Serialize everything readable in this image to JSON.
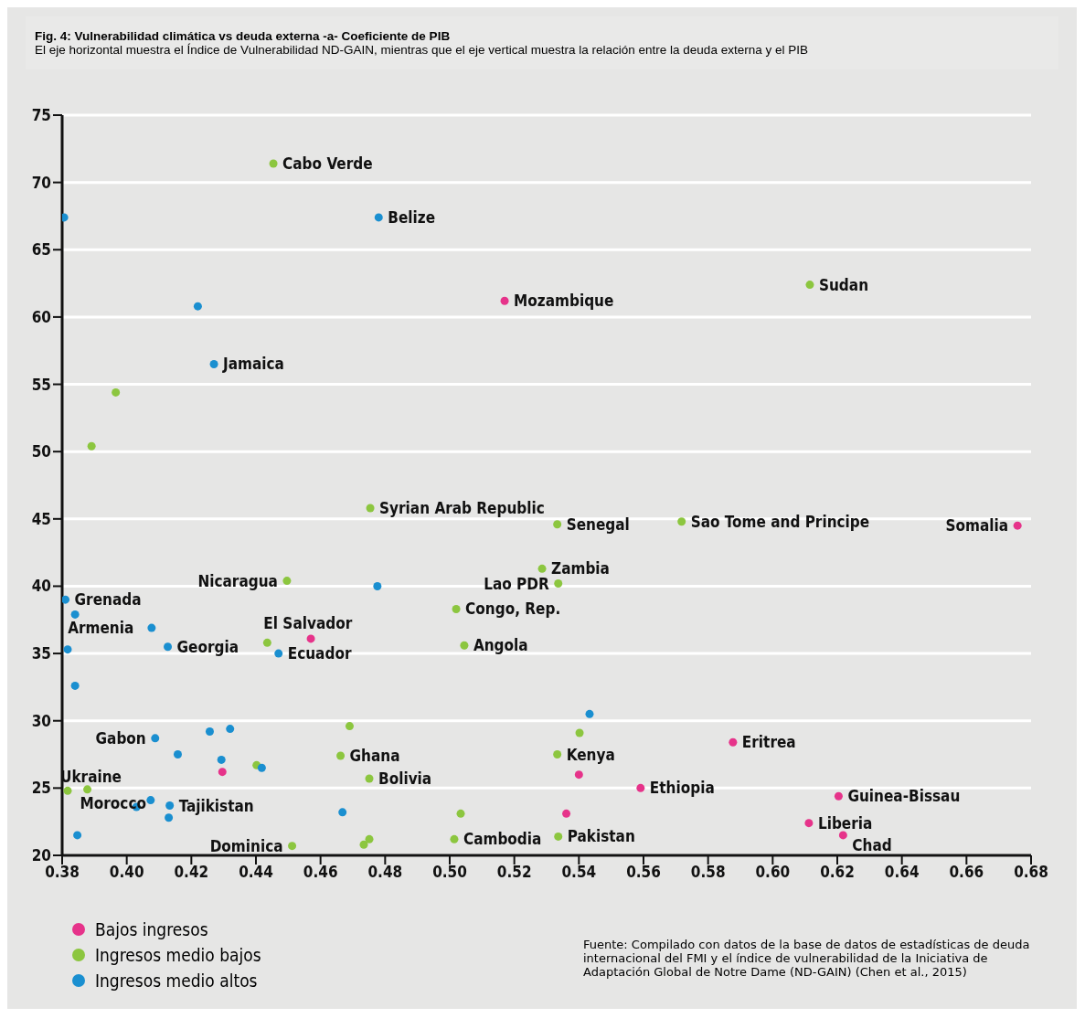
{
  "chart_data": {
    "type": "scatter",
    "title": "Fig. 4:  Vulnerabilidad climática vs deuda externa -a- Coeficiente de PIB",
    "subtitle": "El eje horizontal muestra el Índice de Vulnerabilidad ND-GAIN, mientras que el eje vertical muestra la relación entre la deuda externa y el PIB",
    "series": [
      {
        "name": "Bajos ingresos",
        "color": "#e6338a",
        "x": [
          0.517,
          0.6758,
          0.457,
          0.5877,
          0.4296,
          0.54,
          0.5591,
          0.6204,
          0.5361,
          0.6112,
          0.6218
        ],
        "values": [
          61.2,
          44.5,
          36.1,
          28.4,
          26.2,
          26.0,
          25.0,
          24.4,
          23.1,
          22.4,
          21.5
        ]
      },
      {
        "name": "Ingresos medio bajos",
        "color": "#8cc63f",
        "x": [
          0.4454,
          0.3966,
          0.3891,
          0.6115,
          0.4754,
          0.5333,
          0.5718,
          0.5286,
          0.5336,
          0.4496,
          0.502,
          0.5045,
          0.4435,
          0.469,
          0.4662,
          0.4402,
          0.4751,
          0.5402,
          0.5333,
          0.3817,
          0.3878,
          0.5034,
          0.5014,
          0.5336,
          0.4512,
          0.4751,
          0.4734
        ],
        "values": [
          71.4,
          54.4,
          50.4,
          62.4,
          45.8,
          44.6,
          44.8,
          41.3,
          40.2,
          40.4,
          38.3,
          35.6,
          35.8,
          29.6,
          27.4,
          26.7,
          25.7,
          29.1,
          27.5,
          24.8,
          24.9,
          23.1,
          21.2,
          21.4,
          20.7,
          21.2,
          20.8
        ]
      },
      {
        "name": "Ingresos medio altos",
        "color": "#1a8fd0",
        "x": [
          0.3806,
          0.478,
          0.422,
          0.427,
          0.4776,
          0.381,
          0.384,
          0.4077,
          0.3817,
          0.4127,
          0.447,
          0.384,
          0.5433,
          0.432,
          0.4257,
          0.4088,
          0.4158,
          0.4293,
          0.4418,
          0.4668,
          0.4074,
          0.403,
          0.4133,
          0.413,
          0.3847
        ],
        "values": [
          67.4,
          67.4,
          60.8,
          56.5,
          40.0,
          39.0,
          37.9,
          36.9,
          35.3,
          35.5,
          35.0,
          32.6,
          30.5,
          29.4,
          29.2,
          28.7,
          27.5,
          27.1,
          26.5,
          23.2,
          24.1,
          23.6,
          23.7,
          22.8,
          21.5
        ]
      }
    ],
    "xlim": [
      0.38,
      0.68
    ],
    "xticks": [
      {
        "value": 0.38,
        "label": "0.38"
      },
      {
        "value": 0.4,
        "label": "0.40"
      },
      {
        "value": 0.42,
        "label": "0.42"
      },
      {
        "value": 0.44,
        "label": "0.44"
      },
      {
        "value": 0.46,
        "label": "0.46"
      },
      {
        "value": 0.48,
        "label": "0.48"
      },
      {
        "value": 0.5,
        "label": "0.50"
      },
      {
        "value": 0.52,
        "label": "0.52"
      },
      {
        "value": 0.54,
        "label": "0.54"
      },
      {
        "value": 0.56,
        "label": "0.56"
      },
      {
        "value": 0.58,
        "label": "0.58"
      },
      {
        "value": 0.6,
        "label": "0.60"
      },
      {
        "value": 0.62,
        "label": "0.62"
      },
      {
        "value": 0.64,
        "label": "0.64"
      },
      {
        "value": 0.66,
        "label": "0.66"
      },
      {
        "value": 0.68,
        "label": "0.68"
      }
    ],
    "ylim": [
      20,
      75
    ],
    "yticks": [
      20,
      25,
      30,
      35,
      40,
      45,
      50,
      55,
      60,
      65,
      70,
      75
    ],
    "grid": "y",
    "legend": "bottom left",
    "marker": "circle",
    "annotations": [
      {
        "text": "Cabo Verde",
        "x": 0.4454,
        "y": 71.4
      },
      {
        "text": "Belize",
        "x": 0.478,
        "y": 67.4
      },
      {
        "text": "Sudan",
        "x": 0.6115,
        "y": 62.4
      },
      {
        "text": "Mozambique",
        "x": 0.517,
        "y": 61.2
      },
      {
        "text": "Jamaica",
        "x": 0.427,
        "y": 56.5
      },
      {
        "text": "Syrian Arab Republic",
        "x": 0.4754,
        "y": 45.8
      },
      {
        "text": "Senegal",
        "x": 0.5333,
        "y": 44.6
      },
      {
        "text": "Sao Tome and Principe",
        "x": 0.5718,
        "y": 44.8
      },
      {
        "text": "Somalia",
        "x": 0.6758,
        "y": 44.5
      },
      {
        "text": "Zambia",
        "x": 0.5286,
        "y": 41.3
      },
      {
        "text": "Lao PDR",
        "x": 0.5336,
        "y": 40.2
      },
      {
        "text": "Nicaragua",
        "x": 0.4496,
        "y": 40.4
      },
      {
        "text": "Grenada",
        "x": 0.381,
        "y": 39.0
      },
      {
        "text": "Congo, Rep.",
        "x": 0.502,
        "y": 38.3
      },
      {
        "text": "Armenia",
        "x": 0.384,
        "y": 37.9
      },
      {
        "text": "El Salvador",
        "x": 0.4435,
        "y": 35.8
      },
      {
        "text": "Angola",
        "x": 0.5045,
        "y": 35.6
      },
      {
        "text": "Georgia",
        "x": 0.4127,
        "y": 35.5
      },
      {
        "text": "Ecuador",
        "x": 0.447,
        "y": 35.0
      },
      {
        "text": "Gabon",
        "x": 0.4088,
        "y": 28.7
      },
      {
        "text": "Eritrea",
        "x": 0.5877,
        "y": 28.4
      },
      {
        "text": "Ghana",
        "x": 0.4662,
        "y": 27.4
      },
      {
        "text": "Kenya",
        "x": 0.5333,
        "y": 27.5
      },
      {
        "text": "Bolivia",
        "x": 0.4751,
        "y": 25.7
      },
      {
        "text": "Ethiopia",
        "x": 0.5591,
        "y": 25.0
      },
      {
        "text": "Ukraine",
        "x": 0.3817,
        "y": 24.8
      },
      {
        "text": "Morocco",
        "x": 0.3878,
        "y": 24.9
      },
      {
        "text": "Guinea-Bissau",
        "x": 0.6204,
        "y": 24.4
      },
      {
        "text": "Tajikistan",
        "x": 0.4133,
        "y": 23.7
      },
      {
        "text": "Liberia",
        "x": 0.6112,
        "y": 22.4
      },
      {
        "text": "Pakistan",
        "x": 0.5336,
        "y": 21.4
      },
      {
        "text": "Cambodia",
        "x": 0.5014,
        "y": 21.2
      },
      {
        "text": "Chad",
        "x": 0.6218,
        "y": 21.5
      },
      {
        "text": "Dominica",
        "x": 0.4512,
        "y": 20.7
      },
      "Fuente: Compilado con datos de la base de datos de estadísticas de deuda internacional del FMI y el índice de vulnerabilidad de la Iniciativa de Adaptación Global de Notre Dame (ND-GAIN) (Chen et al., 2015)"
    ]
  }
}
